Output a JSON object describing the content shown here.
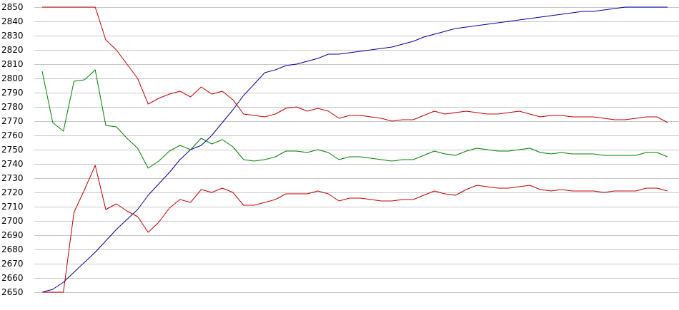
{
  "chart_data": {
    "type": "line",
    "title": "",
    "xlabel": "",
    "ylabel": "",
    "ylim": [
      2650,
      2850
    ],
    "yticks": [
      2650,
      2660,
      2670,
      2680,
      2690,
      2700,
      2710,
      2720,
      2730,
      2740,
      2750,
      2760,
      2770,
      2780,
      2790,
      2800,
      2810,
      2820,
      2830,
      2840,
      2850
    ],
    "grid": true,
    "legend": "none",
    "x": [
      1,
      2,
      3,
      4,
      5,
      6,
      7,
      8,
      9,
      10,
      11,
      12,
      13,
      14,
      15,
      16,
      17,
      18,
      19,
      20,
      21,
      22,
      23,
      24,
      25,
      26,
      27,
      28,
      29,
      30,
      31,
      32,
      33,
      34,
      35,
      36,
      37,
      38,
      39,
      40,
      41,
      42,
      43,
      44,
      45,
      46,
      47,
      48,
      49,
      50,
      51,
      52,
      53,
      54,
      55,
      56,
      57,
      58,
      59,
      60
    ],
    "series": [
      {
        "color": "#0000a0",
        "values": [
          2650,
          2652,
          2657,
          2664,
          2671,
          2678,
          2686,
          2694,
          2701,
          2708,
          2718,
          2726,
          2734,
          2743,
          2750,
          2753,
          2760,
          2769,
          2778,
          2788,
          2796,
          2804,
          2806,
          2809,
          2810,
          2812,
          2814,
          2817,
          2817,
          2818,
          2819,
          2820,
          2821,
          2822,
          2824,
          2826,
          2829,
          2831,
          2833,
          2835,
          2836,
          2837,
          2838,
          2839,
          2840,
          2841,
          2842,
          2843,
          2844,
          2845,
          2846,
          2847,
          2847,
          2848,
          2849,
          2850,
          2850,
          2850,
          2850,
          2850
        ]
      },
      {
        "color": "#c00000",
        "values": [
          2850,
          2850,
          2850,
          2850,
          2850,
          2850,
          2827,
          2820,
          2810,
          2800,
          2782,
          2786,
          2789,
          2791,
          2787,
          2794,
          2789,
          2791,
          2785,
          2775,
          2774,
          2773,
          2775,
          2779,
          2780,
          2777,
          2779,
          2777,
          2772,
          2774,
          2774,
          2773,
          2772,
          2770,
          2771,
          2771,
          2774,
          2777,
          2775,
          2776,
          2777,
          2776,
          2775,
          2775,
          2776,
          2777,
          2775,
          2773,
          2774,
          2774,
          2773,
          2773,
          2773,
          2772,
          2771,
          2771,
          2772,
          2773,
          2773,
          2769
        ]
      },
      {
        "color": "#008000",
        "values": [
          2805,
          2769,
          2763,
          2798,
          2799,
          2806,
          2767,
          2766,
          2758,
          2751,
          2737,
          2742,
          2749,
          2753,
          2750,
          2758,
          2754,
          2757,
          2752,
          2743,
          2742,
          2743,
          2745,
          2749,
          2749,
          2748,
          2750,
          2748,
          2743,
          2745,
          2745,
          2744,
          2743,
          2742,
          2743,
          2743,
          2746,
          2749,
          2747,
          2746,
          2749,
          2751,
          2750,
          2749,
          2749,
          2750,
          2751,
          2748,
          2747,
          2748,
          2747,
          2747,
          2747,
          2746,
          2746,
          2746,
          2746,
          2748,
          2748,
          2745
        ]
      },
      {
        "color": "#c00000",
        "values": [
          2650,
          2650,
          2650,
          2706,
          2722,
          2739,
          2708,
          2712,
          2707,
          2703,
          2692,
          2699,
          2709,
          2715,
          2713,
          2722,
          2720,
          2723,
          2720,
          2711,
          2711,
          2713,
          2715,
          2719,
          2719,
          2719,
          2721,
          2719,
          2714,
          2716,
          2716,
          2715,
          2714,
          2714,
          2715,
          2715,
          2718,
          2721,
          2719,
          2718,
          2722,
          2725,
          2724,
          2723,
          2723,
          2724,
          2725,
          2722,
          2721,
          2722,
          2721,
          2721,
          2721,
          2720,
          2721,
          2721,
          2721,
          2723,
          2723,
          2721
        ]
      }
    ]
  }
}
